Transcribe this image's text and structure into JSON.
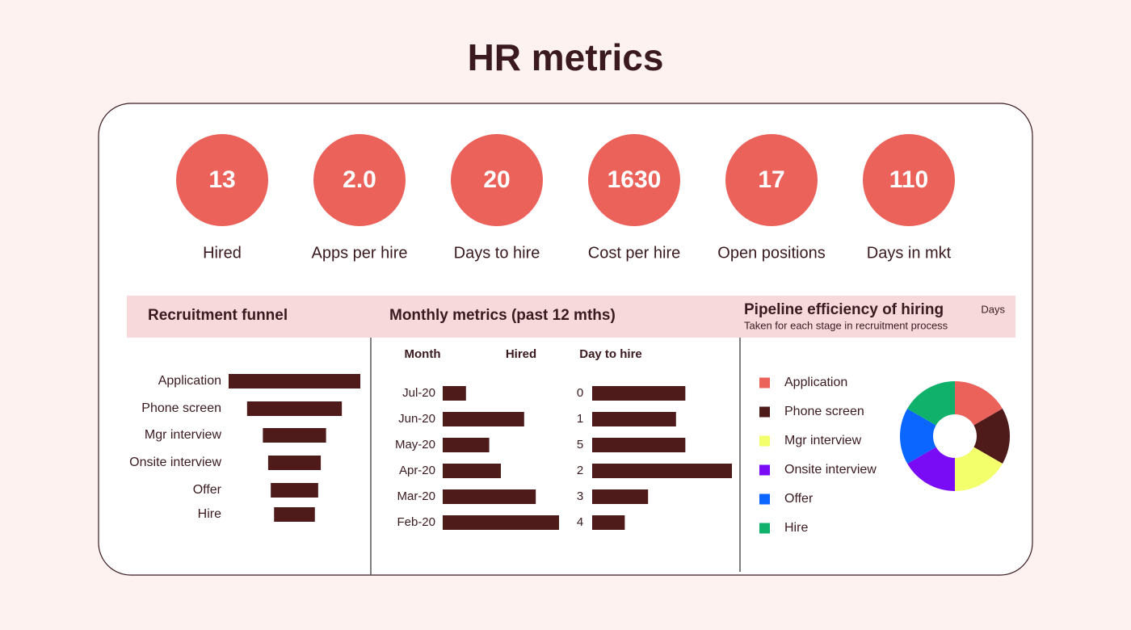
{
  "title": "HR metrics",
  "kpis": [
    {
      "value": "13",
      "label": "Hired"
    },
    {
      "value": "2.0",
      "label": "Apps per hire"
    },
    {
      "value": "20",
      "label": "Days to hire"
    },
    {
      "value": "1630",
      "label": "Cost per hire"
    },
    {
      "value": "17",
      "label": "Open positions"
    },
    {
      "value": "110",
      "label": "Days in mkt"
    }
  ],
  "chart_data": [
    {
      "type": "funnel",
      "title": "Recruitment funnel",
      "categories": [
        "Application",
        "Phone screen",
        "Mgr interview",
        "Onsite interview",
        "Offer",
        "Hire"
      ],
      "values": [
        100,
        72,
        48,
        40,
        36,
        31
      ],
      "color": "#4e1a1a"
    },
    {
      "type": "bar",
      "title": "Monthly metrics (past 12 mths)",
      "category_label": "Month",
      "value_label": "Hired",
      "categories": [
        "Jul-20",
        "Jun-20",
        "May-20",
        "Apr-20",
        "Mar-20",
        "Feb-20"
      ],
      "values": [
        2,
        7,
        4,
        5,
        8,
        10
      ],
      "color": "#4e1a1a"
    },
    {
      "type": "bar",
      "value_label": "Day to hire",
      "categories": [
        "0",
        "1",
        "5",
        "2",
        "3",
        "4"
      ],
      "values": [
        20,
        18,
        20,
        30,
        12,
        7
      ],
      "color": "#4e1a1a"
    },
    {
      "type": "pie",
      "title": "Pipeline efficiency of hiring",
      "subtitle": "Taken for each stage in recruitment process",
      "annotation": "Days",
      "categories": [
        "Application",
        "Phone screen",
        "Mgr interview",
        "Onsite interview",
        "Offer",
        "Hire"
      ],
      "values": [
        1,
        1,
        1,
        1,
        1,
        1
      ],
      "colors": [
        "#eb625b",
        "#4e1a1a",
        "#f3ff6b",
        "#7a0cf5",
        "#0a66ff",
        "#10b26b"
      ]
    }
  ]
}
